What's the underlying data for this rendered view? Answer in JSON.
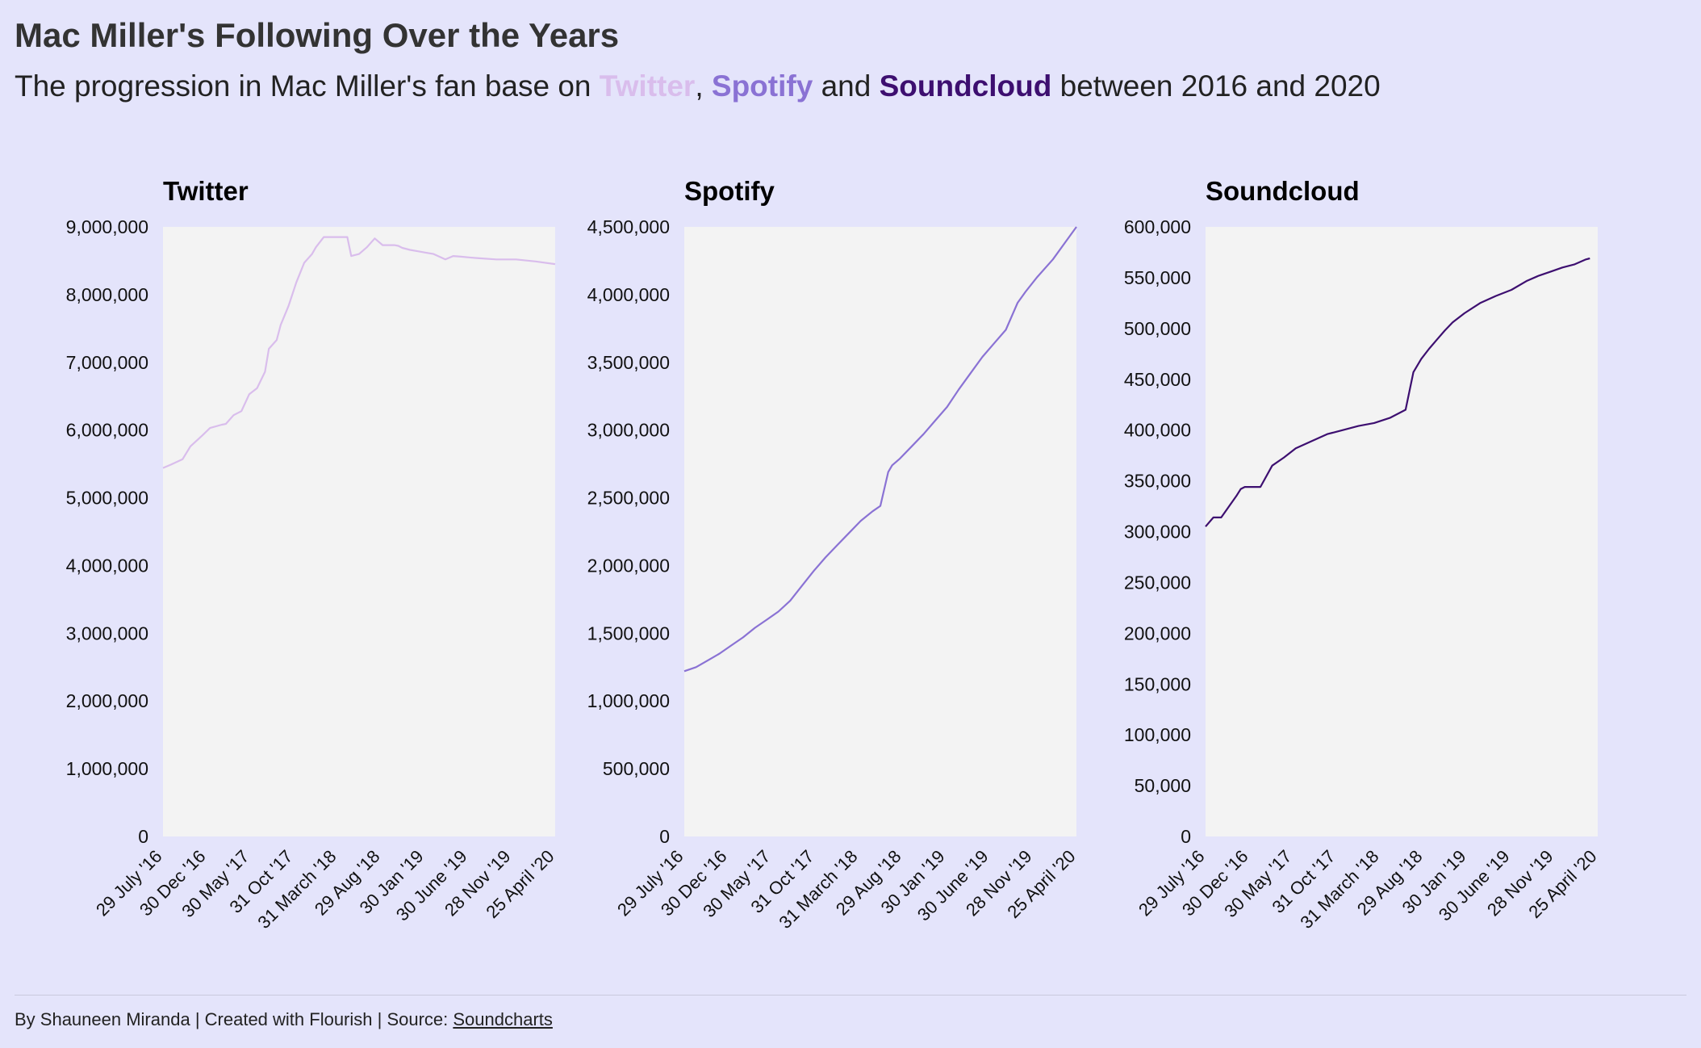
{
  "header": {
    "title": "Mac Miller's Following Over the Years",
    "subtitle_before": "The progression in Mac Miller's fan base on ",
    "kw_twitter": "Twitter",
    "sep_comma": ", ",
    "kw_spotify": "Spotify",
    "sep_and": " and ",
    "kw_soundcloud": "Soundcloud",
    "subtitle_after": " between 2016 and 2020"
  },
  "colors": {
    "background": "#e4e4fb",
    "plot_bg": "#f3f3f3",
    "twitter": "#d9bdec",
    "spotify": "#8a72d4",
    "soundcloud": "#3d0f70"
  },
  "footer": {
    "credit": "By Shauneen Miranda | Created with Flourish | Source: ",
    "source_label": "Soundcharts"
  },
  "chart_data": [
    {
      "type": "line",
      "title": "Twitter",
      "series": [
        {
          "color_key": "twitter",
          "x": [
            0,
            0.02,
            0.05,
            0.07,
            0.1,
            0.12,
            0.15,
            0.16,
            0.18,
            0.2,
            0.22,
            0.24,
            0.26,
            0.27,
            0.29,
            0.3,
            0.32,
            0.34,
            0.36,
            0.38,
            0.39,
            0.41,
            0.42,
            0.44,
            0.46,
            0.47,
            0.48,
            0.5,
            0.52,
            0.54,
            0.56,
            0.59,
            0.6,
            0.61,
            0.63,
            0.65,
            0.67,
            0.69,
            0.72,
            0.74,
            0.76,
            0.78,
            0.8,
            0.85,
            0.9,
            0.95,
            1.0
          ],
          "values": [
            5440000,
            5490000,
            5570000,
            5760000,
            5920000,
            6030000,
            6080000,
            6090000,
            6220000,
            6280000,
            6530000,
            6620000,
            6860000,
            7200000,
            7330000,
            7550000,
            7830000,
            8180000,
            8470000,
            8600000,
            8700000,
            8850000,
            8850000,
            8850000,
            8850000,
            8850000,
            8570000,
            8600000,
            8700000,
            8830000,
            8730000,
            8730000,
            8720000,
            8690000,
            8660000,
            8640000,
            8620000,
            8600000,
            8520000,
            8570000,
            8560000,
            8550000,
            8540000,
            8520000,
            8520000,
            8490000,
            8450000
          ]
        }
      ],
      "x_ticks": [
        "29 July '16",
        "30 Dec '16",
        "30 May '17",
        "31 Oct '17",
        "31 March '18",
        "29 Aug '18",
        "30 Jan '19",
        "30 June '19",
        "28 Nov '19",
        "25 April '20"
      ],
      "y_ticks": [
        "0",
        "1,000,000",
        "2,000,000",
        "3,000,000",
        "4,000,000",
        "5,000,000",
        "6,000,000",
        "7,000,000",
        "8,000,000",
        "9,000,000"
      ],
      "ylim": [
        0,
        9000000
      ]
    },
    {
      "type": "line",
      "title": "Spotify",
      "series": [
        {
          "color_key": "spotify",
          "x": [
            0,
            0.03,
            0.06,
            0.09,
            0.12,
            0.15,
            0.18,
            0.21,
            0.24,
            0.27,
            0.3,
            0.33,
            0.36,
            0.39,
            0.42,
            0.45,
            0.48,
            0.5,
            0.52,
            0.53,
            0.55,
            0.58,
            0.61,
            0.64,
            0.67,
            0.7,
            0.73,
            0.76,
            0.79,
            0.82,
            0.85,
            0.87,
            0.9,
            0.94,
            0.97,
            1.0
          ],
          "values": [
            1220000,
            1250000,
            1300000,
            1350000,
            1410000,
            1470000,
            1540000,
            1600000,
            1660000,
            1740000,
            1850000,
            1960000,
            2060000,
            2150000,
            2240000,
            2330000,
            2400000,
            2440000,
            2690000,
            2740000,
            2790000,
            2880000,
            2970000,
            3070000,
            3170000,
            3300000,
            3420000,
            3540000,
            3640000,
            3740000,
            3940000,
            4020000,
            4130000,
            4260000,
            4380000,
            4500000
          ]
        }
      ],
      "x_ticks": [
        "29 July '16",
        "30 Dec '16",
        "30 May '17",
        "31 Oct '17",
        "31 March '18",
        "29 Aug '18",
        "30 Jan '19",
        "30 June '19",
        "28 Nov '19",
        "25 April '20"
      ],
      "y_ticks": [
        "0",
        "500,000",
        "1,000,000",
        "1,500,000",
        "2,000,000",
        "2,500,000",
        "3,000,000",
        "3,500,000",
        "4,000,000",
        "4,500,000"
      ],
      "ylim": [
        0,
        4500000
      ]
    },
    {
      "type": "line",
      "title": "Soundcloud",
      "series": [
        {
          "color_key": "soundcloud",
          "x": [
            0,
            0.02,
            0.04,
            0.06,
            0.08,
            0.09,
            0.1,
            0.12,
            0.14,
            0.17,
            0.2,
            0.23,
            0.27,
            0.31,
            0.35,
            0.39,
            0.43,
            0.47,
            0.51,
            0.53,
            0.55,
            0.57,
            0.59,
            0.61,
            0.63,
            0.66,
            0.7,
            0.74,
            0.78,
            0.82,
            0.85,
            0.88,
            0.91,
            0.94,
            0.97,
            0.98
          ],
          "values": [
            305000,
            314000,
            314000,
            325000,
            336000,
            342000,
            344000,
            344000,
            344000,
            365000,
            373000,
            382000,
            389000,
            396000,
            400000,
            404000,
            407000,
            412000,
            420000,
            457000,
            470000,
            480000,
            489000,
            498000,
            506000,
            515000,
            525000,
            532000,
            538000,
            547000,
            552000,
            556000,
            560000,
            563000,
            568000,
            569000
          ]
        }
      ],
      "x_ticks": [
        "29 July '16",
        "30 Dec '16",
        "30 May '17",
        "31 Oct '17",
        "31 March '18",
        "29 Aug '18",
        "30 Jan '19",
        "30 June '19",
        "28 Nov '19",
        "25 April '20"
      ],
      "y_ticks": [
        "0",
        "50,000",
        "100,000",
        "150,000",
        "200,000",
        "250,000",
        "300,000",
        "350,000",
        "400,000",
        "450,000",
        "500,000",
        "550,000",
        "600,000"
      ],
      "ylim": [
        0,
        600000
      ]
    }
  ]
}
